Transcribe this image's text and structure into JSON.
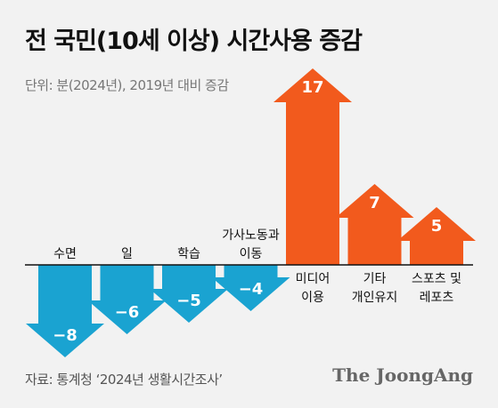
{
  "header": {
    "title": "전 국민(10세 이상) 시간사용 증감",
    "unit_note": "단위: 분(2024년), 2019년 대비 증감"
  },
  "footer": {
    "source": "자료: 통계청 ‘2024년 생활시간조사’",
    "logo": "The JoongAng"
  },
  "colors": {
    "negative": "#1aa3d1",
    "positive": "#f25a1d",
    "axis": "#111111",
    "background": "#f2f2f2"
  },
  "chart_data": {
    "type": "bar",
    "title": "전 국민(10세 이상) 시간사용 증감",
    "categories": [
      [
        "수면"
      ],
      [
        "일"
      ],
      [
        "학습"
      ],
      [
        "가사노동과",
        "이동"
      ],
      [
        "미디어",
        "이용"
      ],
      [
        "기타",
        "개인유지"
      ],
      [
        "스포츠 및",
        "레포츠"
      ]
    ],
    "values": [
      -8,
      -6,
      -5,
      -4,
      17,
      7,
      5
    ],
    "value_labels": [
      "−8",
      "−6",
      "−5",
      "−4",
      "17",
      "7",
      "5"
    ],
    "ylim": [
      -8,
      17
    ],
    "grid": false,
    "legend": "none"
  }
}
